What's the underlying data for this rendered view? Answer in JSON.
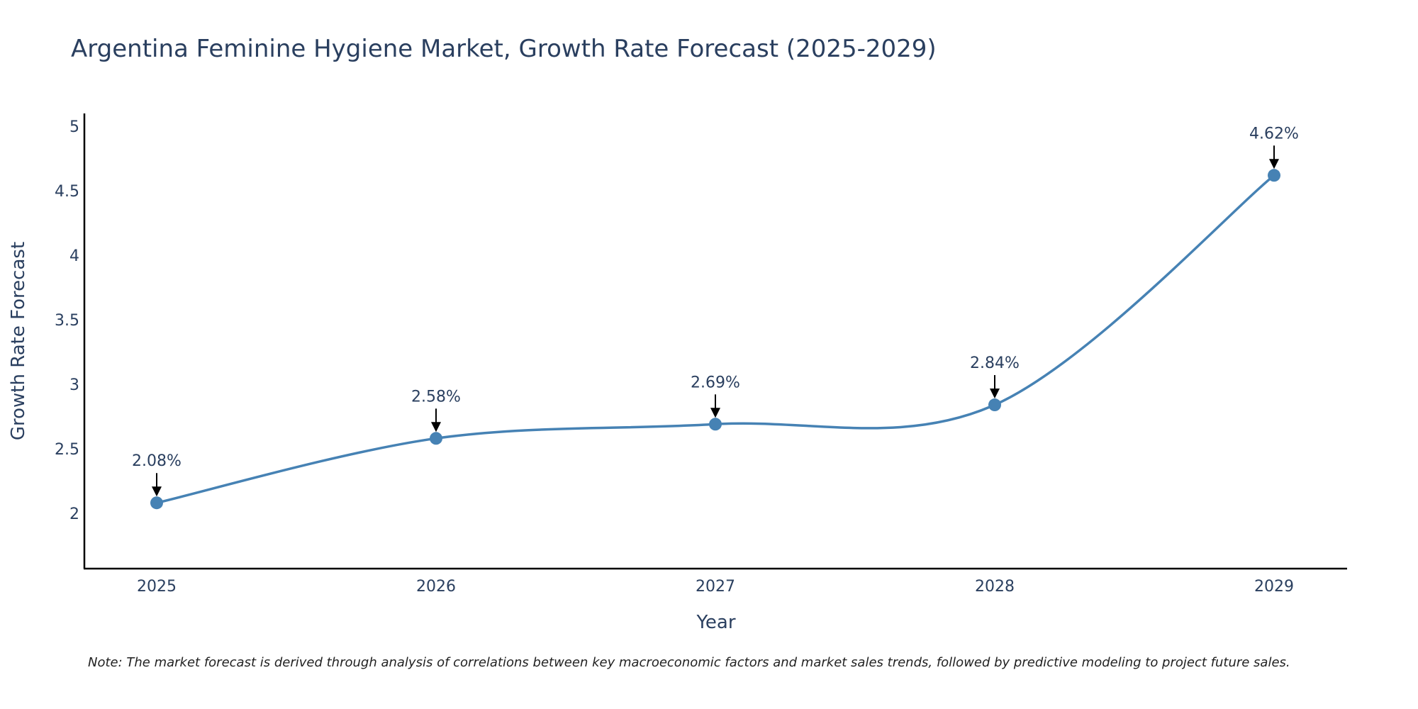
{
  "chart_data": {
    "type": "line",
    "title": "Argentina Feminine Hygiene Market, Growth Rate Forecast (2025-2029)",
    "xlabel": "Year",
    "ylabel": "Growth Rate Forecast",
    "categories": [
      "2025",
      "2026",
      "2027",
      "2028",
      "2029"
    ],
    "series": [
      {
        "values": [
          2.08,
          2.58,
          2.69,
          2.84,
          4.62
        ]
      }
    ],
    "data_labels": [
      "2.08%",
      "2.58%",
      "2.69%",
      "2.84%",
      "4.62%"
    ],
    "yticks": [
      "2",
      "2.5",
      "3",
      "3.5",
      "4",
      "4.5",
      "5"
    ],
    "ylim": [
      1.57,
      5.1
    ],
    "grid": false,
    "line_shape": "spline",
    "line_color": "#4682b4",
    "marker_color": "#4682b4",
    "arrow_color": "#000000",
    "note": "Note: The market forecast is derived through analysis of correlations between key macroeconomic factors and market sales trends, followed by predictive modeling to project future sales."
  }
}
